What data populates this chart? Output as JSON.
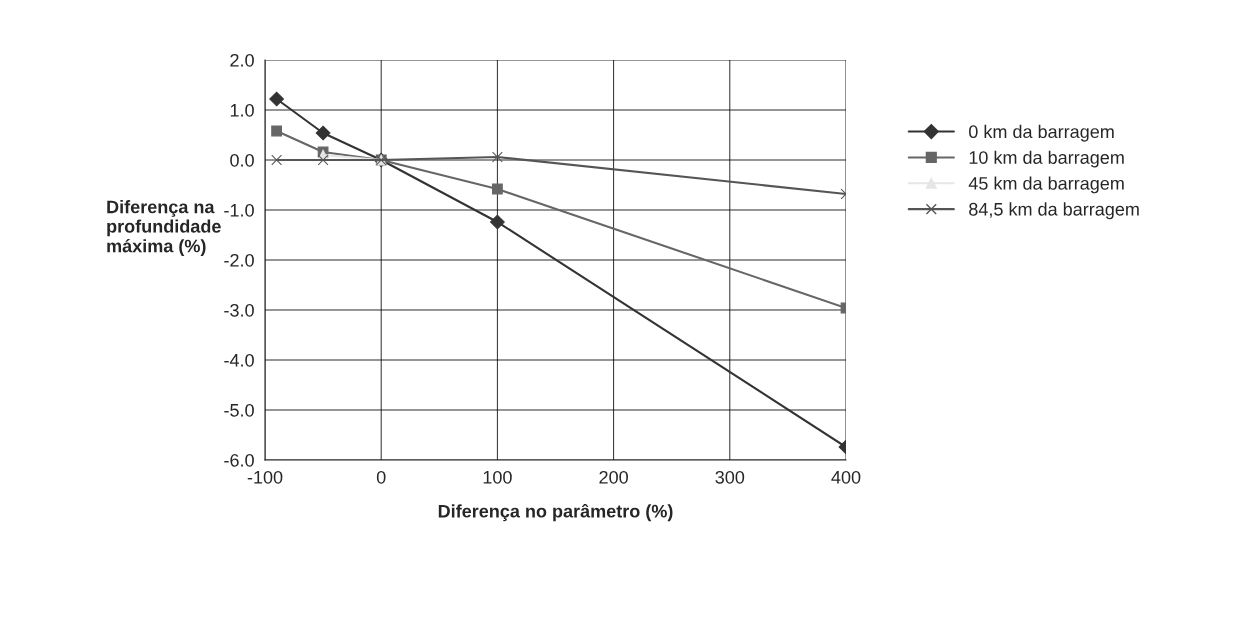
{
  "chart_data": {
    "type": "line",
    "xlabel": "Diferença no parâmetro (%)",
    "ylabel": "Diferença na\nprofundidade\nmáxima (%)",
    "x": [
      -90,
      -50,
      0,
      100,
      400
    ],
    "series": [
      {
        "name": "0 km da barragem",
        "color": "#333333",
        "marker": "diamond",
        "values": [
          1.22,
          0.54,
          0,
          -1.24,
          -5.74
        ]
      },
      {
        "name": "10 km da barragem",
        "color": "#666666",
        "marker": "square",
        "values": [
          0.58,
          0.16,
          0,
          -0.58,
          -2.96
        ]
      },
      {
        "name": "45 km da barragem",
        "color": "#e6e6e6",
        "marker": "triangle",
        "values": [
          null,
          0.1,
          0,
          null,
          null
        ]
      },
      {
        "name": "84,5 km da barragem",
        "color": "#555555",
        "marker": "cross",
        "values": [
          0,
          0,
          0,
          0.06,
          -0.68
        ]
      }
    ],
    "xlim": [
      -100,
      400
    ],
    "xticks": [
      -100,
      0,
      100,
      200,
      300,
      400
    ],
    "ylim": [
      -6,
      2
    ],
    "yticks": [
      {
        "value": 2,
        "label": "2.0"
      },
      {
        "value": 1,
        "label": "1.0"
      },
      {
        "value": 0,
        "label": "0.0"
      },
      {
        "value": -1,
        "label": "-1.0"
      },
      {
        "value": -2,
        "label": "-2.0"
      },
      {
        "value": -3,
        "label": "-3.0"
      },
      {
        "value": -4,
        "label": "-4.0"
      },
      {
        "value": -5,
        "label": "-5.0"
      },
      {
        "value": -6,
        "label": "-6.0"
      }
    ],
    "grid": true,
    "legend": "right",
    "line_style": "solid"
  }
}
